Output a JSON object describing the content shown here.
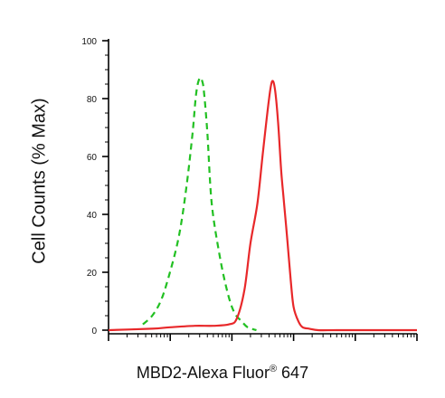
{
  "chart_data": {
    "type": "line",
    "xlabel_parts": {
      "prefix": "MBD2-Alexa Fluor",
      "mark": "®",
      "suffix": " 647"
    },
    "ylabel": "Cell Counts (% Max)",
    "x_scale": "log",
    "xlim": [
      1,
      100000
    ],
    "ylim": [
      0,
      100
    ],
    "yticks": [
      "0",
      "20",
      "40",
      "60",
      "80",
      "100"
    ],
    "grid": false,
    "series": [
      {
        "style": "dashed",
        "color": "#22c022",
        "x": [
          3.6,
          5.1,
          7,
          9.3,
          13.7,
          18.2,
          23,
          26.4,
          30,
          33,
          35.4,
          40,
          47,
          63,
          85,
          110,
          145,
          180,
          250
        ],
        "y": [
          2,
          5,
          10,
          18,
          32,
          49,
          68,
          82,
          87,
          86,
          82,
          68,
          44,
          26,
          13,
          6,
          3,
          1,
          0
        ]
      },
      {
        "style": "solid",
        "color": "#e8282a",
        "x": [
          1,
          5,
          10,
          25,
          50,
          90,
          120,
          160,
          200,
          260,
          320,
          400,
          450,
          500,
          560,
          630,
          700,
          800,
          900,
          1000,
          1200,
          1400,
          1800,
          2500,
          5000,
          20000,
          100000
        ],
        "y": [
          0,
          0.5,
          1,
          1.5,
          1.5,
          2,
          4,
          14,
          30,
          44,
          62,
          80,
          86,
          83,
          72,
          55,
          44,
          30,
          17,
          8,
          3,
          1,
          0.5,
          0,
          0,
          0,
          0
        ]
      }
    ]
  }
}
